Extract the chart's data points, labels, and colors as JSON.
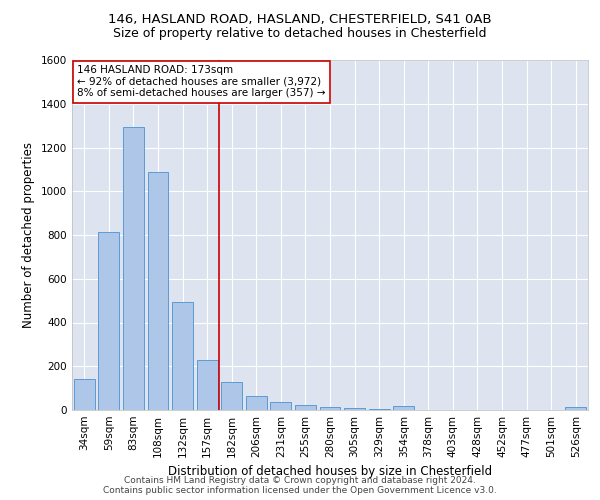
{
  "title_line1": "146, HASLAND ROAD, HASLAND, CHESTERFIELD, S41 0AB",
  "title_line2": "Size of property relative to detached houses in Chesterfield",
  "xlabel": "Distribution of detached houses by size in Chesterfield",
  "ylabel": "Number of detached properties",
  "bar_color": "#aec6e8",
  "bar_edge_color": "#5b9bd5",
  "background_color": "#dde4f0",
  "grid_color": "#ffffff",
  "annotation_box_color": "#cc0000",
  "vline_color": "#cc0000",
  "categories": [
    "34sqm",
    "59sqm",
    "83sqm",
    "108sqm",
    "132sqm",
    "157sqm",
    "182sqm",
    "206sqm",
    "231sqm",
    "255sqm",
    "280sqm",
    "305sqm",
    "329sqm",
    "354sqm",
    "378sqm",
    "403sqm",
    "428sqm",
    "452sqm",
    "477sqm",
    "501sqm",
    "526sqm"
  ],
  "values": [
    140,
    815,
    1295,
    1090,
    495,
    230,
    130,
    65,
    35,
    25,
    15,
    10,
    5,
    18,
    0,
    0,
    0,
    0,
    0,
    0,
    13
  ],
  "vline_x": 5.5,
  "ylim": [
    0,
    1600
  ],
  "yticks": [
    0,
    200,
    400,
    600,
    800,
    1000,
    1200,
    1400,
    1600
  ],
  "annotation_text": "146 HASLAND ROAD: 173sqm\n← 92% of detached houses are smaller (3,972)\n8% of semi-detached houses are larger (357) →",
  "footer_line1": "Contains HM Land Registry data © Crown copyright and database right 2024.",
  "footer_line2": "Contains public sector information licensed under the Open Government Licence v3.0.",
  "title_fontsize": 9.5,
  "subtitle_fontsize": 9,
  "axis_label_fontsize": 8.5,
  "tick_fontsize": 7.5,
  "annotation_fontsize": 7.5,
  "footer_fontsize": 6.5
}
